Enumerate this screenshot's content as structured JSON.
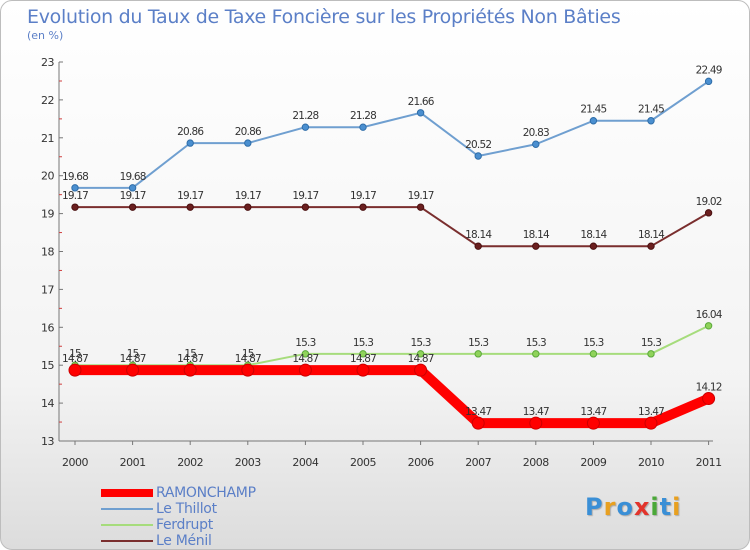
{
  "title": "Evolution du Taux de Taxe Foncière sur les Propriétés Non Bâties",
  "subtitle": "(en %)",
  "logo": {
    "text": "Proxiti",
    "colors": [
      "#3a8fd6",
      "#e8a020",
      "#3a8fd6",
      "#e2342b",
      "#4aa838",
      "#3a8fd6",
      "#e8a020"
    ]
  },
  "chart_data": {
    "type": "line",
    "title": "Evolution du Taux de Taxe Foncière sur les Propriétés Non Bâties",
    "ylabel": "(en %)",
    "ylim": [
      13,
      23
    ],
    "yticks": [
      13,
      14,
      15,
      16,
      17,
      18,
      19,
      20,
      21,
      22,
      23
    ],
    "categories": [
      "2000",
      "2001",
      "2002",
      "2003",
      "2004",
      "2005",
      "2006",
      "2007",
      "2008",
      "2009",
      "2010",
      "2011"
    ],
    "series": [
      {
        "name": "RAMONCHAMP",
        "color": "#ff0000",
        "values": [
          14.87,
          14.87,
          14.87,
          14.87,
          14.87,
          14.87,
          14.87,
          13.47,
          13.47,
          13.47,
          13.47,
          14.12
        ],
        "labels": [
          "14.87",
          "14.87",
          "14.87",
          "14.87",
          "14.87",
          "14.87",
          "14.87",
          "13.47",
          "13.47",
          "13.47",
          "13.47",
          "14.12"
        ]
      },
      {
        "name": "Le Thillot",
        "color": "#6f9fd0",
        "values": [
          19.68,
          19.68,
          20.86,
          20.86,
          21.28,
          21.28,
          21.66,
          20.52,
          20.83,
          21.45,
          21.45,
          22.49
        ],
        "labels": [
          "19.68",
          "19.68",
          "20.86",
          "20.86",
          "21.28",
          "21.28",
          "21.66",
          "20.52",
          "20.83",
          "21.45",
          "21.45",
          "22.49"
        ]
      },
      {
        "name": "Ferdrupt",
        "color": "#a6dc7c",
        "values": [
          15.0,
          15.0,
          15.0,
          15.0,
          15.3,
          15.3,
          15.3,
          15.3,
          15.3,
          15.3,
          15.3,
          16.04
        ],
        "labels": [
          "15",
          "15",
          "15",
          "15",
          "15.3",
          "15.3",
          "15.3",
          "15.3",
          "15.3",
          "15.3",
          "15.3",
          "16.04"
        ]
      },
      {
        "name": "Le Ménil",
        "color": "#7a2e2e",
        "values": [
          19.17,
          19.17,
          19.17,
          19.17,
          19.17,
          19.17,
          19.17,
          18.14,
          18.14,
          18.14,
          18.14,
          19.02
        ],
        "labels": [
          "19.17",
          "19.17",
          "19.17",
          "19.17",
          "19.17",
          "19.17",
          "19.17",
          "18.14",
          "18.14",
          "18.14",
          "18.14",
          "19.02"
        ]
      }
    ]
  }
}
